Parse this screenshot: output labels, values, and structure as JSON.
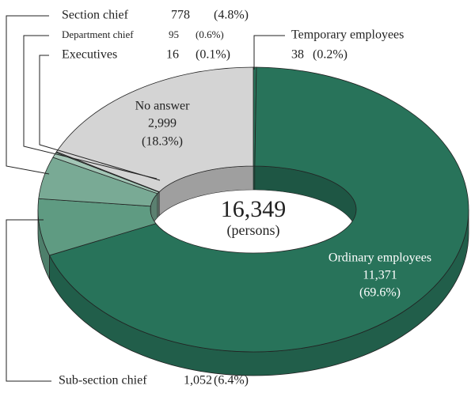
{
  "chart_data": {
    "type": "donut",
    "categories": [
      "Temporary employees",
      "Ordinary employees",
      "Sub-section chief",
      "Section chief",
      "Department chief",
      "Executives",
      "No answer"
    ],
    "values": [
      38,
      11371,
      1052,
      778,
      95,
      16,
      2999
    ],
    "value_labels": [
      "38",
      "11,371",
      "1,052",
      "778",
      "95",
      "16",
      "2,999"
    ],
    "percent_labels": [
      "(0.2%)",
      "(69.6%)",
      "(6.4%)",
      "(4.8%)",
      "(0.6%)",
      "(0.1%)",
      "(18.3%)"
    ],
    "colors": [
      "#28735a",
      "#28735a",
      "#5f9b82",
      "#79aa95",
      "#a3c6b6",
      "#a3c6b6",
      "#d4d4d4"
    ],
    "total": {
      "value": 16349,
      "label": "16,349"
    },
    "total_unit": "(persons)"
  }
}
